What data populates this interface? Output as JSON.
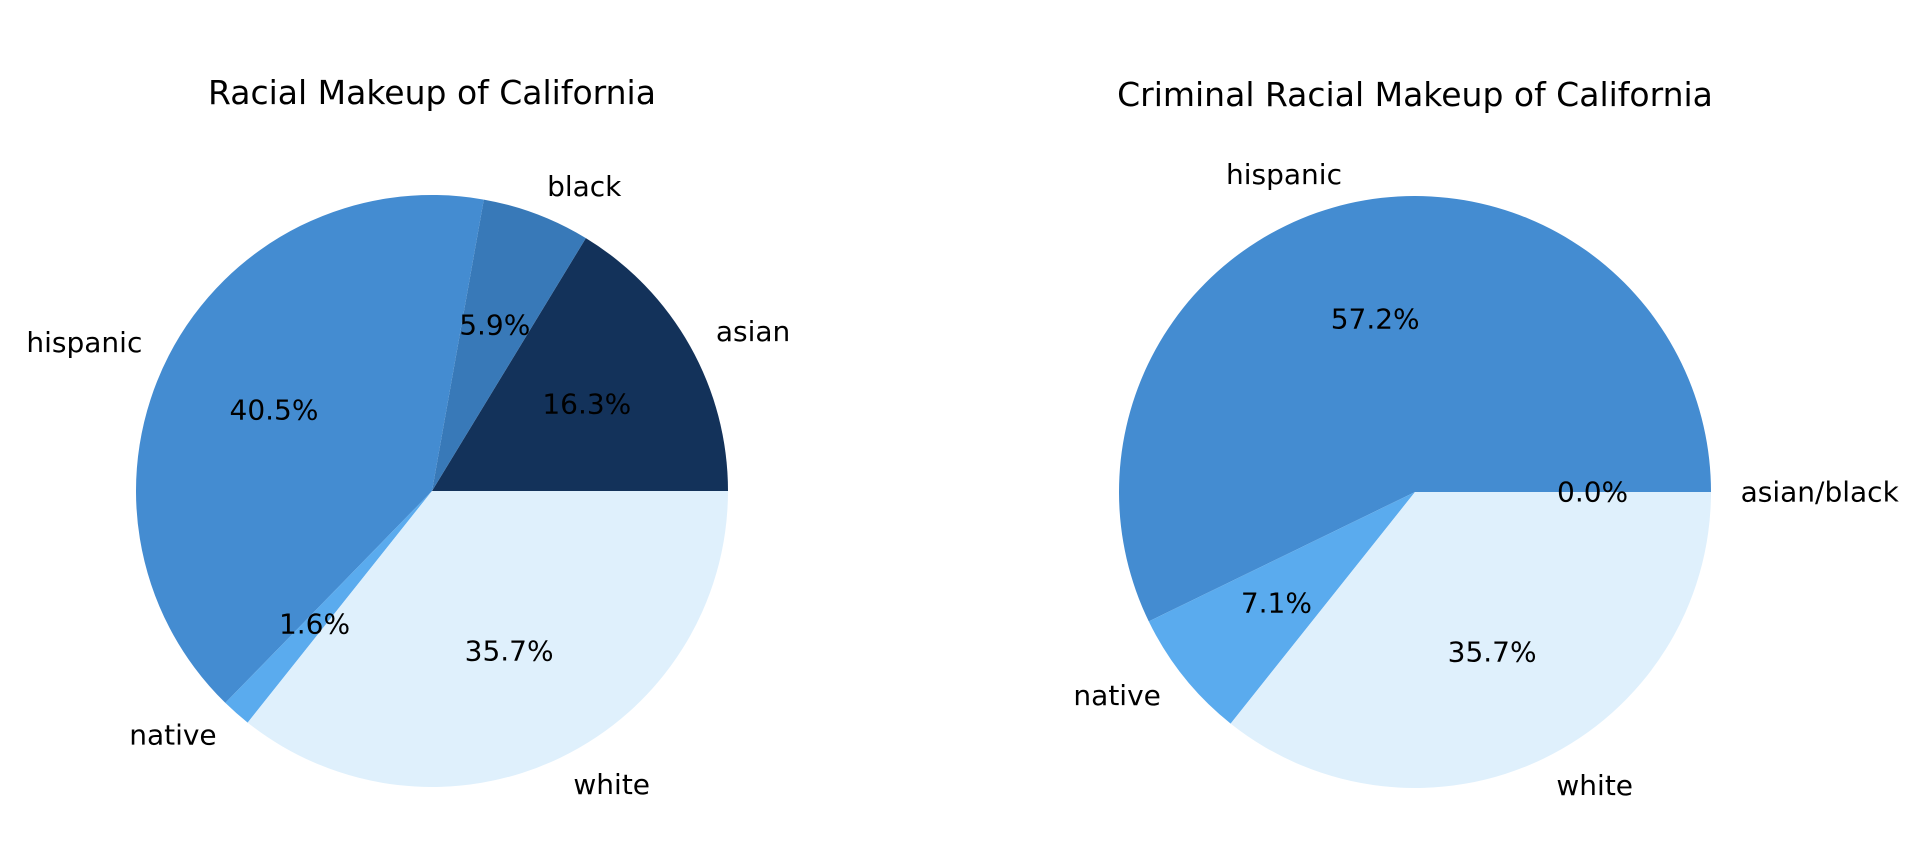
{
  "chart_data": [
    {
      "type": "pie",
      "title": "Racial Makeup of California",
      "start_angle_deg": 0,
      "direction": "counterclockwise",
      "slices": [
        {
          "label": "asian",
          "value": 16.3,
          "pct_label": "16.3%",
          "color": "#13325a"
        },
        {
          "label": "black",
          "value": 5.9,
          "pct_label": "5.9%",
          "color": "#3879b8"
        },
        {
          "label": "hispanic",
          "value": 40.5,
          "pct_label": "40.5%",
          "color": "#448cd1"
        },
        {
          "label": "native",
          "value": 1.6,
          "pct_label": "1.6%",
          "color": "#5aabee"
        },
        {
          "label": "white",
          "value": 35.7,
          "pct_label": "35.7%",
          "color": "#dff0fc"
        }
      ]
    },
    {
      "type": "pie",
      "title": "Criminal Racial Makeup of California",
      "start_angle_deg": 0,
      "direction": "counterclockwise",
      "slices": [
        {
          "label": "asian/black",
          "value": 0.0,
          "pct_label": "0.0%",
          "color": "#13325a"
        },
        {
          "label": "hispanic",
          "value": 57.2,
          "pct_label": "57.2%",
          "color": "#448cd1"
        },
        {
          "label": "native",
          "value": 7.1,
          "pct_label": "7.1%",
          "color": "#5aabee"
        },
        {
          "label": "white",
          "value": 35.7,
          "pct_label": "35.7%",
          "color": "#dff0fc"
        }
      ]
    }
  ]
}
